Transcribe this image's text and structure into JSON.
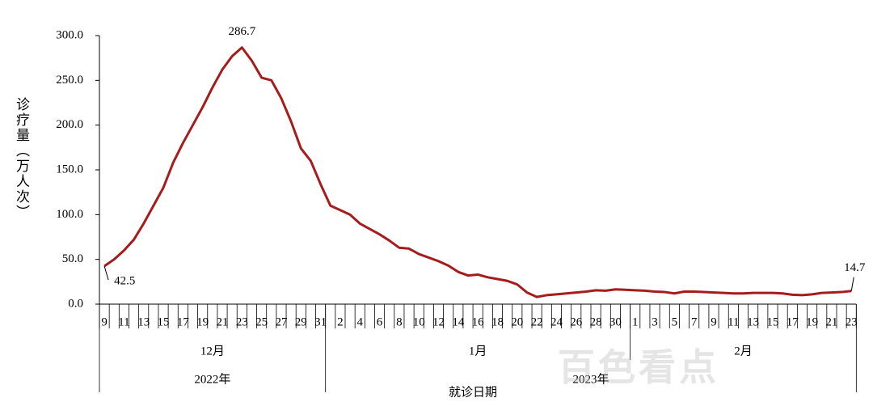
{
  "chart_data": {
    "type": "line",
    "y_label": "诊疗量（万人次）",
    "x_label": "就诊日期",
    "categories": [
      "9",
      null,
      "11",
      null,
      "13",
      null,
      "15",
      null,
      "17",
      null,
      "19",
      null,
      "21",
      null,
      "23",
      null,
      "25",
      null,
      "27",
      null,
      "29",
      null,
      "31",
      null,
      "2",
      null,
      "4",
      null,
      "6",
      null,
      "8",
      null,
      "10",
      null,
      "12",
      null,
      "14",
      null,
      "16",
      null,
      "18",
      null,
      "20",
      null,
      "22",
      null,
      "24",
      null,
      "26",
      null,
      "28",
      null,
      "30",
      null,
      "1",
      null,
      "3",
      null,
      "5",
      null,
      "7",
      null,
      "9",
      null,
      "11",
      null,
      "13",
      null,
      "15",
      null,
      "17",
      null,
      "19",
      null,
      "21",
      null,
      "23"
    ],
    "months": [
      "12月",
      "1月",
      "2月"
    ],
    "years": [
      "2022年",
      "2023年"
    ],
    "series": [
      {
        "color": "#a61c1c",
        "values": [
          42.5,
          50,
          60,
          72,
          90,
          110,
          130,
          158,
          180,
          200,
          220,
          242,
          262,
          277,
          286.7,
          272,
          253,
          250,
          230,
          204,
          174,
          160,
          134,
          110,
          105,
          100,
          90,
          84,
          78,
          71,
          63,
          62,
          56,
          52,
          48,
          43,
          36,
          32,
          33,
          30,
          28,
          26,
          22,
          13,
          8,
          10,
          11,
          12,
          13,
          14,
          15.5,
          15,
          16.5,
          16,
          15.5,
          15,
          14,
          13.5,
          12,
          14,
          14,
          13.5,
          13,
          12.5,
          12,
          12,
          12.5,
          12.5,
          12.5,
          12,
          10.5,
          10,
          11,
          12.5,
          13,
          13.5,
          14.7
        ]
      }
    ],
    "ylim": [
      0,
      300
    ],
    "yticks": [
      {
        "value": 0,
        "label": "0.0"
      },
      {
        "value": 50,
        "label": "50.0"
      },
      {
        "value": 100,
        "label": "100.0"
      },
      {
        "value": 150,
        "label": "150.0"
      },
      {
        "value": 200,
        "label": "200.0"
      },
      {
        "value": 250,
        "label": "250.0"
      },
      {
        "value": 300,
        "label": "300.0"
      }
    ],
    "watermark": "百色看点"
  }
}
